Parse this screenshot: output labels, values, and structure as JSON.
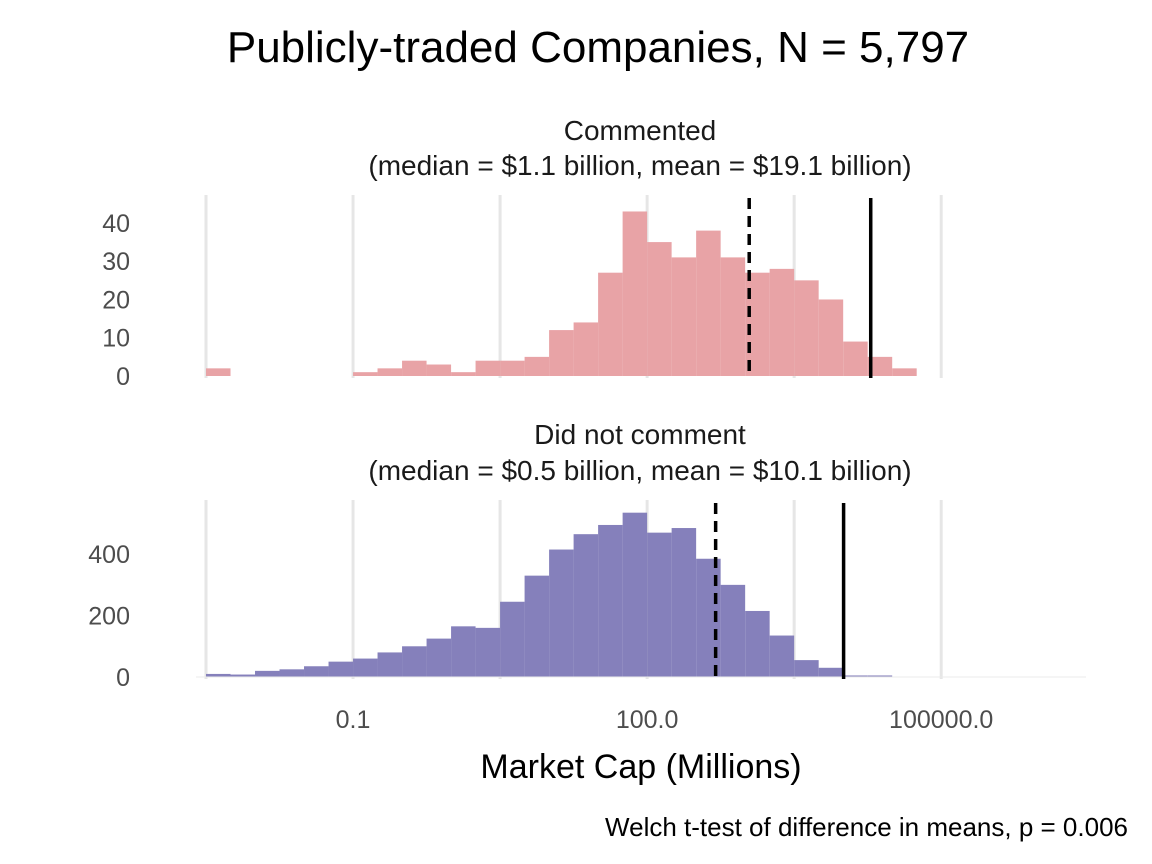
{
  "chart_data": {
    "type": "bar",
    "subtype": "histogram",
    "title": "Publicly-traded Companies, N = 5,797",
    "xlabel": "Market Cap (Millions)",
    "caption": "Welch t-test of difference in means, p = 0.006",
    "x_scale": "log10",
    "xlim": [
      0.0025,
      3000000
    ],
    "x_ticks": [
      0.1,
      100.0,
      100000.0
    ],
    "x_tick_labels": [
      "0.1",
      "100.0",
      "100000.0"
    ],
    "x_minor_gridlines": [
      0.003162,
      3.162,
      3162
    ],
    "bin_edges": [
      0.003162,
      0.005623,
      0.01,
      0.01778,
      0.03162,
      0.05623,
      0.1,
      0.1778,
      0.3162,
      0.5623,
      1,
      1.778,
      3.162,
      5.623,
      10,
      17.78,
      31.62,
      56.23,
      100,
      177.8,
      316.2,
      562.3,
      1000,
      1778,
      3162,
      5623,
      10000,
      17783,
      31623,
      56234,
      100000,
      177828,
      316228,
      562341,
      1000000,
      1778279
    ],
    "panels": [
      {
        "title_line1": "Commented",
        "title_line2": "(median = $1.1 billion, mean = $19.1 billion)",
        "color": "#e8a3a6",
        "ylim": [
          0,
          46
        ],
        "y_ticks": [
          0,
          10,
          20,
          30,
          40
        ],
        "y_tick_labels": [
          "0",
          "10",
          "20",
          "30",
          "40"
        ],
        "counts": [
          2,
          0,
          0,
          0,
          0,
          0,
          1,
          2,
          4,
          3,
          1,
          4,
          4,
          5,
          12,
          14,
          27,
          43,
          35,
          31,
          38,
          31,
          27,
          28,
          25,
          20,
          9,
          5,
          2,
          0,
          0,
          0,
          0,
          0,
          0
        ],
        "median_millions": 1100,
        "mean_millions": 19100
      },
      {
        "title_line1": "Did not comment",
        "title_line2": "(median = $0.5 billion, mean = $10.1 billion)",
        "color": "#8580bb",
        "ylim": [
          0,
          560
        ],
        "y_ticks": [
          0,
          200,
          400
        ],
        "y_tick_labels": [
          "0",
          "200",
          "400"
        ],
        "counts": [
          0,
          0,
          0,
          0,
          0,
          0,
          0,
          0,
          0,
          0,
          0,
          0,
          0,
          0,
          0,
          0,
          0,
          0,
          0,
          0,
          0,
          0,
          0,
          0,
          0,
          0,
          0,
          0,
          0,
          0,
          0,
          0,
          0,
          0,
          0
        ],
        "counts_full": [
          10,
          8,
          20,
          25,
          35,
          50,
          60,
          80,
          100,
          125,
          165,
          160,
          245,
          330,
          415,
          465,
          495,
          535,
          470,
          485,
          385,
          300,
          215,
          135,
          55,
          30,
          5,
          5,
          0,
          0,
          0,
          0,
          0,
          0,
          0
        ],
        "median_millions": 500,
        "mean_millions": 10100
      }
    ]
  }
}
